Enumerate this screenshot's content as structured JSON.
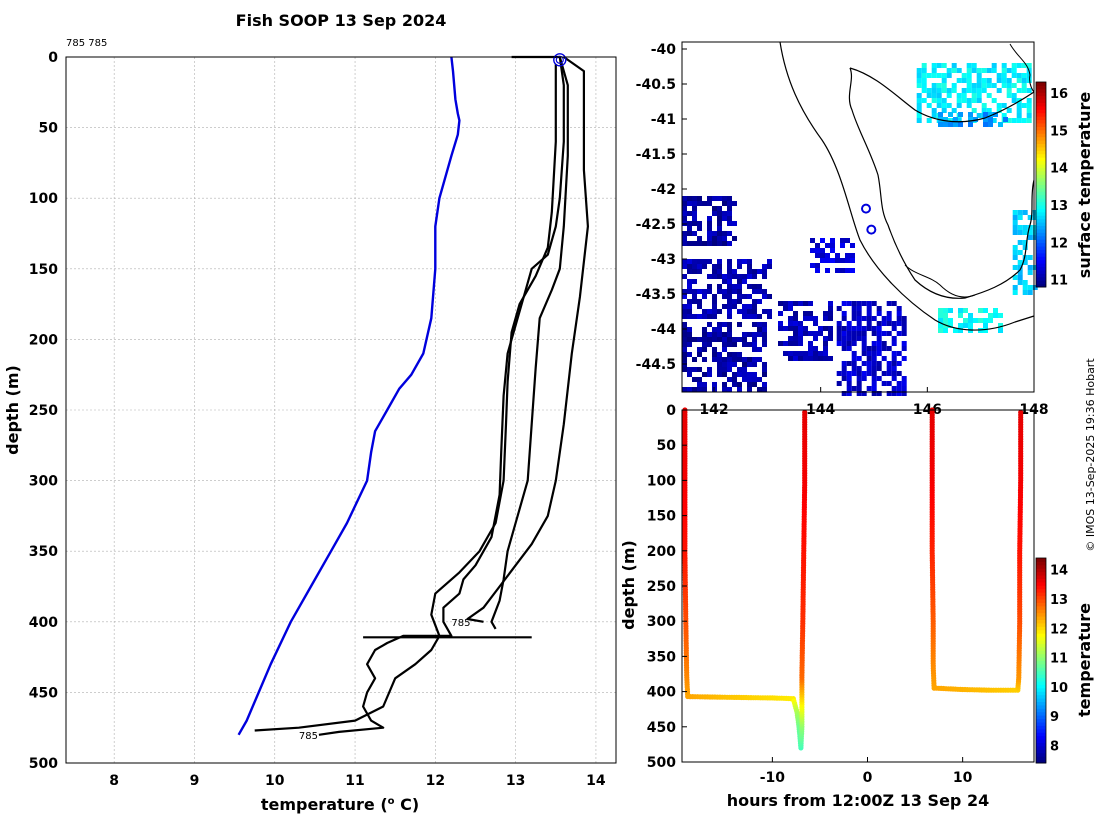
{
  "page_title": "Fish SOOP 13 Sep 2024",
  "copyright": "© IMOS 13-Sep-2025 19:36 Hobart",
  "colors": {
    "climatology_line": "#0000dd",
    "profile_line": "#000000",
    "grid": "#b0b0b0",
    "ocean_mask": "#ffffff"
  },
  "chart_data": [
    {
      "id": "temperature-profiles",
      "type": "line",
      "title": "Fish SOOP 13 Sep 2024",
      "corner_label": "785 785",
      "xlabel": "temperature (",
      "xlabel_sup": "o",
      "xlabel_unit": " C)",
      "ylabel": "depth (m)",
      "xlim": [
        7.4,
        14.25
      ],
      "ylim": [
        500,
        0
      ],
      "xticks": [
        8,
        9,
        10,
        11,
        12,
        13,
        14
      ],
      "yticks": [
        0,
        50,
        100,
        150,
        200,
        250,
        300,
        350,
        400,
        450,
        500
      ],
      "annotations": [
        {
          "text": "785",
          "x": 12.2,
          "y": 400
        },
        {
          "text": "785",
          "x": 10.3,
          "y": 480
        }
      ],
      "series": [
        {
          "name": "climatology",
          "color": "#0000dd",
          "points": [
            [
              12.2,
              0
            ],
            [
              12.22,
              10
            ],
            [
              12.25,
              30
            ],
            [
              12.28,
              40
            ],
            [
              12.3,
              45
            ],
            [
              12.28,
              55
            ],
            [
              12.2,
              70
            ],
            [
              12.1,
              90
            ],
            [
              12.05,
              100
            ],
            [
              12.0,
              120
            ],
            [
              12.0,
              150
            ],
            [
              11.95,
              185
            ],
            [
              11.85,
              210
            ],
            [
              11.7,
              225
            ],
            [
              11.55,
              235
            ],
            [
              11.4,
              250
            ],
            [
              11.25,
              265
            ],
            [
              11.2,
              280
            ],
            [
              11.15,
              300
            ],
            [
              10.9,
              330
            ],
            [
              10.7,
              350
            ],
            [
              10.45,
              375
            ],
            [
              10.2,
              400
            ],
            [
              9.95,
              430
            ],
            [
              9.8,
              450
            ],
            [
              9.65,
              470
            ],
            [
              9.55,
              480
            ]
          ]
        },
        {
          "name": "profile-a",
          "color": "#000000",
          "points": [
            [
              12.95,
              0
            ],
            [
              13.55,
              0
            ],
            [
              13.6,
              20
            ],
            [
              13.6,
              60
            ],
            [
              13.55,
              100
            ],
            [
              13.5,
              120
            ],
            [
              13.4,
              140
            ],
            [
              13.2,
              150
            ],
            [
              13.1,
              170
            ],
            [
              13.0,
              190
            ],
            [
              12.9,
              210
            ],
            [
              12.85,
              240
            ],
            [
              12.82,
              280
            ],
            [
              12.8,
              310
            ],
            [
              12.7,
              340
            ],
            [
              12.5,
              360
            ],
            [
              12.35,
              370
            ],
            [
              12.3,
              380
            ],
            [
              12.1,
              390
            ],
            [
              12.1,
              400
            ],
            [
              12.2,
              410
            ],
            [
              11.6,
              410
            ],
            [
              11.4,
              415
            ],
            [
              11.25,
              420
            ],
            [
              11.15,
              430
            ],
            [
              11.25,
              440
            ],
            [
              11.15,
              450
            ],
            [
              11.1,
              460
            ],
            [
              11.2,
              470
            ],
            [
              11.35,
              475
            ],
            [
              10.8,
              478
            ],
            [
              10.55,
              480
            ]
          ]
        },
        {
          "name": "profile-b",
          "color": "#000000",
          "points": [
            [
              13.6,
              0
            ],
            [
              13.85,
              10
            ],
            [
              13.85,
              80
            ],
            [
              13.9,
              120
            ],
            [
              13.8,
              170
            ],
            [
              13.7,
              210
            ],
            [
              13.6,
              260
            ],
            [
              13.5,
              300
            ],
            [
              13.4,
              325
            ],
            [
              13.2,
              345
            ],
            [
              13.0,
              360
            ],
            [
              12.8,
              375
            ],
            [
              12.6,
              390
            ],
            [
              12.4,
              398
            ],
            [
              12.6,
              400
            ]
          ]
        },
        {
          "name": "profile-c",
          "color": "#000000",
          "points": [
            [
              13.55,
              0
            ],
            [
              13.65,
              20
            ],
            [
              13.65,
              70
            ],
            [
              13.6,
              120
            ],
            [
              13.55,
              150
            ],
            [
              13.45,
              165
            ],
            [
              13.3,
              185
            ],
            [
              13.25,
              220
            ],
            [
              13.2,
              260
            ],
            [
              13.15,
              300
            ],
            [
              13.0,
              330
            ],
            [
              12.9,
              350
            ],
            [
              12.85,
              370
            ],
            [
              12.8,
              385
            ],
            [
              12.7,
              400
            ],
            [
              12.75,
              405
            ]
          ]
        },
        {
          "name": "profile-d",
          "color": "#000000",
          "points": [
            [
              13.5,
              5
            ],
            [
              13.5,
              60
            ],
            [
              13.45,
              110
            ],
            [
              13.4,
              135
            ],
            [
              13.25,
              155
            ],
            [
              13.05,
              175
            ],
            [
              12.95,
              195
            ],
            [
              12.9,
              230
            ],
            [
              12.88,
              260
            ],
            [
              12.85,
              300
            ],
            [
              12.75,
              330
            ],
            [
              12.55,
              350
            ],
            [
              12.3,
              365
            ],
            [
              12.0,
              380
            ],
            [
              11.95,
              395
            ],
            [
              12.05,
              410
            ],
            [
              11.95,
              420
            ],
            [
              11.75,
              430
            ],
            [
              11.5,
              440
            ],
            [
              11.35,
              460
            ],
            [
              11.0,
              470
            ],
            [
              10.3,
              475
            ],
            [
              9.75,
              477
            ]
          ]
        },
        {
          "name": "profile-e",
          "color": "#000000",
          "points": [
            [
              11.1,
              411
            ],
            [
              13.2,
              411
            ]
          ]
        }
      ],
      "markers": [
        {
          "name": "surface-circle",
          "x": 13.55,
          "y": 2
        }
      ]
    },
    {
      "id": "surface-temperature-map",
      "type": "heatmap",
      "title": "",
      "xlabel": "",
      "ylabel": "",
      "xlim": [
        141.4,
        148.0
      ],
      "ylim": [
        -44.9,
        -39.9
      ],
      "xticks": [
        142,
        144,
        146,
        148
      ],
      "yticks": [
        -40,
        -40.5,
        -41,
        -41.5,
        -42,
        -42.5,
        -43,
        -43.5,
        -44,
        -44.5
      ],
      "colorbar_label": "surface temperature",
      "colorbar_range": [
        10.8,
        16.3
      ],
      "colorbar_ticks": [
        11,
        12,
        13,
        14,
        15,
        16
      ],
      "stations": [
        {
          "lon": 144.85,
          "lat": -42.28
        },
        {
          "lon": 144.95,
          "lat": -42.58
        }
      ],
      "patches": [
        {
          "name": "cold-west-1",
          "lon": [
            141.4,
            142.4
          ],
          "lat": [
            -42.8,
            -42.1
          ],
          "value": 11.0
        },
        {
          "name": "cold-west-2",
          "lon": [
            141.4,
            143.0
          ],
          "lat": [
            -43.8,
            -43.0
          ],
          "value": 11.1
        },
        {
          "name": "cold-west-3",
          "lon": [
            141.4,
            142.9
          ],
          "lat": [
            -44.9,
            -43.9
          ],
          "value": 11.0
        },
        {
          "name": "cold-south-1",
          "lon": [
            143.2,
            144.2
          ],
          "lat": [
            -44.4,
            -43.6
          ],
          "value": 11.1
        },
        {
          "name": "cold-south-2",
          "lon": [
            144.3,
            145.6
          ],
          "lat": [
            -44.9,
            -43.6
          ],
          "value": 11.2
        },
        {
          "name": "cool-mid",
          "lon": [
            143.8,
            144.6
          ],
          "lat": [
            -43.2,
            -42.7
          ],
          "value": 11.3
        },
        {
          "name": "warm-bass",
          "lon": [
            145.8,
            147.9
          ],
          "lat": [
            -41.0,
            -40.2
          ],
          "value": 12.8
        },
        {
          "name": "mid-bass",
          "lon": [
            146.2,
            147.5
          ],
          "lat": [
            -41.1,
            -40.9
          ],
          "value": 12.3
        },
        {
          "name": "east-coast",
          "lon": [
            147.6,
            148.0
          ],
          "lat": [
            -43.5,
            -42.3
          ],
          "value": 12.6
        },
        {
          "name": "south-east",
          "lon": [
            146.2,
            147.4
          ],
          "lat": [
            -44.0,
            -43.7
          ],
          "value": 12.9
        }
      ]
    },
    {
      "id": "depth-time-section",
      "type": "scatter",
      "title": "",
      "xlabel": "hours from 12:00Z 13 Sep 24",
      "ylabel": "depth (m)",
      "xlim": [
        -19.5,
        17.5
      ],
      "ylim": [
        500,
        0
      ],
      "xticks": [
        -10,
        0,
        10
      ],
      "yticks": [
        0,
        50,
        100,
        150,
        200,
        250,
        300,
        350,
        400,
        450,
        500
      ],
      "colorbar_label": "temperature",
      "colorbar_range": [
        7.4,
        14.4
      ],
      "colorbar_ticks": [
        8,
        9,
        10,
        11,
        12,
        13,
        14
      ],
      "tracks": [
        {
          "name": "track-1",
          "points": [
            [
              -19.2,
              0,
              13.7
            ],
            [
              -19.2,
              100,
              13.6
            ],
            [
              -19.2,
              200,
              13.4
            ],
            [
              -19.1,
              300,
              13.0
            ],
            [
              -19.0,
              380,
              12.6
            ],
            [
              -18.9,
              407,
              12.4
            ],
            [
              -15,
              408,
              12.2
            ],
            [
              -10,
              409,
              12.0
            ],
            [
              -7.8,
              410,
              11.9
            ],
            [
              -7.4,
              430,
              11.2
            ],
            [
              -7.2,
              450,
              10.8
            ],
            [
              -7.0,
              480,
              10.5
            ],
            [
              -6.9,
              450,
              11.0
            ],
            [
              -6.9,
              380,
              12.8
            ],
            [
              -6.8,
              300,
              13.2
            ],
            [
              -6.7,
              200,
              13.4
            ],
            [
              -6.6,
              100,
              13.6
            ],
            [
              -6.6,
              0,
              13.7
            ]
          ]
        },
        {
          "name": "track-2",
          "points": [
            [
              6.8,
              0,
              13.7
            ],
            [
              6.8,
              100,
              13.6
            ],
            [
              6.8,
              200,
              13.3
            ],
            [
              6.9,
              300,
              12.9
            ],
            [
              6.9,
              360,
              12.6
            ],
            [
              7.0,
              395,
              12.4
            ],
            [
              10,
              397,
              12.3
            ],
            [
              13,
              398,
              12.2
            ],
            [
              15.8,
              398,
              12.1
            ],
            [
              15.9,
              380,
              12.5
            ],
            [
              16.0,
              300,
              13.0
            ],
            [
              16.0,
              200,
              13.4
            ],
            [
              16.1,
              100,
              13.6
            ],
            [
              16.1,
              0,
              13.7
            ]
          ]
        }
      ]
    }
  ]
}
